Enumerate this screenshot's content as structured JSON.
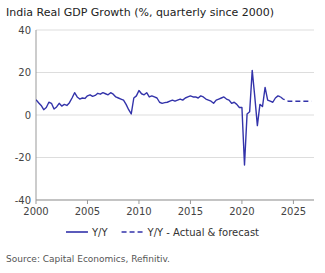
{
  "chart_data": {
    "type": "line",
    "title": "India Real GDP Growth (%, quarterly since 2000)",
    "annotations": [
      "Source: Capital Economics, Refinitiv."
    ],
    "xlim": [
      2000.0,
      2027.0
    ],
    "xticks": [
      2000,
      2005,
      2010,
      2015,
      2020,
      2025
    ],
    "ylim": [
      -40,
      40
    ],
    "yticks": [
      -40,
      -20,
      0,
      20,
      40
    ],
    "grid": true,
    "legend": "bottom",
    "series": [
      {
        "name": "Y/Y",
        "color": "#3333aa",
        "line_style": "solid",
        "x": [
          2000.0,
          2000.25,
          2000.5,
          2000.75,
          2001.0,
          2001.25,
          2001.5,
          2001.75,
          2002.0,
          2002.25,
          2002.5,
          2002.75,
          2003.0,
          2003.25,
          2003.5,
          2003.75,
          2004.0,
          2004.25,
          2004.5,
          2004.75,
          2005.0,
          2005.25,
          2005.5,
          2005.75,
          2006.0,
          2006.25,
          2006.5,
          2006.75,
          2007.0,
          2007.25,
          2007.5,
          2007.75,
          2008.0,
          2008.25,
          2008.5,
          2008.75,
          2009.0,
          2009.25,
          2009.5,
          2009.75,
          2010.0,
          2010.25,
          2010.5,
          2010.75,
          2011.0,
          2011.25,
          2011.5,
          2011.75,
          2012.0,
          2012.25,
          2012.5,
          2012.75,
          2013.0,
          2013.25,
          2013.5,
          2013.75,
          2014.0,
          2014.25,
          2014.5,
          2014.75,
          2015.0,
          2015.25,
          2015.5,
          2015.75,
          2016.0,
          2016.25,
          2016.5,
          2016.75,
          2017.0,
          2017.25,
          2017.5,
          2017.75,
          2018.0,
          2018.25,
          2018.5,
          2018.75,
          2019.0,
          2019.25,
          2019.5,
          2019.75,
          2020.0,
          2020.25,
          2020.5,
          2020.75,
          2021.0,
          2021.25,
          2021.5,
          2021.75,
          2022.0,
          2022.25,
          2022.5,
          2022.75,
          2023.0,
          2023.25,
          2023.5,
          2023.75
        ],
        "values": [
          7.2,
          5.8,
          4.5,
          2.5,
          3.5,
          6.0,
          5.5,
          2.8,
          3.8,
          5.5,
          4.2,
          5.0,
          4.5,
          5.8,
          8.0,
          10.5,
          8.5,
          7.5,
          8.0,
          7.8,
          9.0,
          9.5,
          8.8,
          9.2,
          10.2,
          9.8,
          10.5,
          10.0,
          9.5,
          10.5,
          9.8,
          8.5,
          8.0,
          7.5,
          7.0,
          5.0,
          2.5,
          0.5,
          8.0,
          9.0,
          11.5,
          10.0,
          9.5,
          10.5,
          8.5,
          9.0,
          8.5,
          8.0,
          6.0,
          5.5,
          5.8,
          6.0,
          6.5,
          7.0,
          6.5,
          7.0,
          7.5,
          7.0,
          8.0,
          8.5,
          9.0,
          8.5,
          8.5,
          8.0,
          9.0,
          8.5,
          7.5,
          7.0,
          6.5,
          5.5,
          7.0,
          7.5,
          8.0,
          8.5,
          7.5,
          7.0,
          5.5,
          6.0,
          5.0,
          3.5,
          3.5,
          -23.5,
          0.5,
          1.5,
          21.0,
          8.5,
          -5.0,
          5.0,
          4.0,
          13.0,
          7.0,
          6.5,
          6.0,
          8.0,
          9.0,
          8.5
        ]
      },
      {
        "name": "Y/Y - Actual & forecast",
        "color": "#3333aa",
        "line_style": "dashed",
        "x": [
          2023.75,
          2024.0,
          2024.25,
          2024.5,
          2024.75,
          2025.0,
          2025.25,
          2025.5,
          2025.75,
          2026.0,
          2026.25,
          2026.5,
          2026.75
        ],
        "values": [
          8.5,
          7.5,
          7.0,
          6.5,
          6.5,
          6.5,
          6.5,
          6.5,
          6.5,
          6.5,
          6.5,
          6.5,
          6.5
        ]
      }
    ]
  }
}
